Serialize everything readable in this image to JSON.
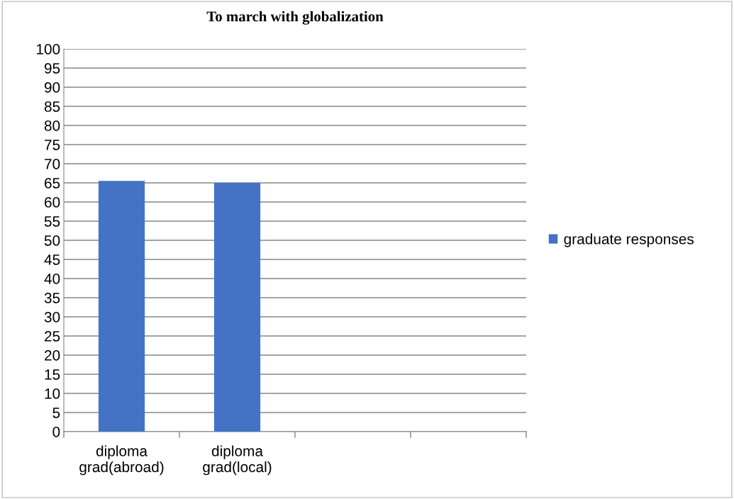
{
  "chart_data": {
    "type": "bar",
    "title": "To march with globalization",
    "categories": [
      "diploma\ngrad(abroad)",
      "diploma\ngrad(local)",
      null,
      null
    ],
    "series": [
      {
        "name": "graduate responses",
        "color": "#4472c4",
        "values": [
          65.5,
          65,
          null,
          null
        ]
      }
    ],
    "ylim": [
      0,
      100
    ],
    "yticks": [
      0,
      5,
      10,
      15,
      20,
      25,
      30,
      35,
      40,
      45,
      50,
      55,
      60,
      65,
      70,
      75,
      80,
      85,
      90,
      95,
      100
    ],
    "grid": "y",
    "legend": "right"
  }
}
